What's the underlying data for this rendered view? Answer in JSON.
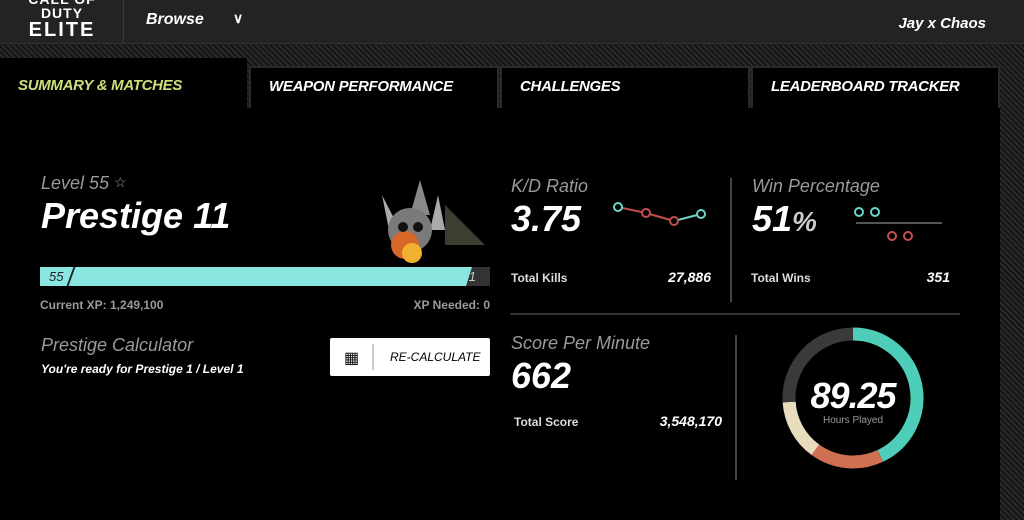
{
  "header": {
    "logo_text": "CALL OF DUTY ELITE",
    "browse_label": "Browse",
    "user_name": "Jay x Chaos"
  },
  "tabs": [
    {
      "label": "SUMMARY & MATCHES",
      "active": true
    },
    {
      "label": "WEAPON PERFORMANCE"
    },
    {
      "label": "CHALLENGES"
    },
    {
      "label": "LEADERBOARD TRACKER"
    }
  ],
  "profile": {
    "level": "Level 55",
    "star_icon": "star-outline-icon",
    "prestige": "Prestige 11",
    "bar_start": "55",
    "bar_end": "1",
    "progress_percent": 96,
    "current_xp": "Current XP: 1,249,100",
    "xp_needed": "XP Needed: 0"
  },
  "calculator": {
    "title": "Prestige Calculator",
    "message": "You're ready for Prestige 1 / Level 1",
    "button_label": "RE-CALCULATE",
    "icon": "calculator-icon"
  },
  "kd": {
    "title": "K/D Ratio",
    "value": "3.75",
    "sub_label": "Total Kills",
    "sub_value": "27,886"
  },
  "win": {
    "title": "Win Percentage",
    "value": "51",
    "unit": "%",
    "sub_label": "Total Wins",
    "sub_value": "351"
  },
  "spm": {
    "title": "Score Per Minute",
    "value": "662",
    "sub_label": "Total Score",
    "sub_value": "3,548,170"
  },
  "hours": {
    "value": "89.25",
    "label": "Hours Played",
    "segments": [
      {
        "color": "#4ecdb9",
        "fraction": 0.43
      },
      {
        "color": "#cf7052",
        "fraction": 0.17
      },
      {
        "color": "#e8dcbd",
        "fraction": 0.14
      },
      {
        "color": "#3a3a3a",
        "fraction": 0.26
      }
    ]
  },
  "colors": {
    "accent_tab": "#cbe07a",
    "teal": "#6ad6c8",
    "red": "#c0504d",
    "bar": "#8ae6e0"
  }
}
